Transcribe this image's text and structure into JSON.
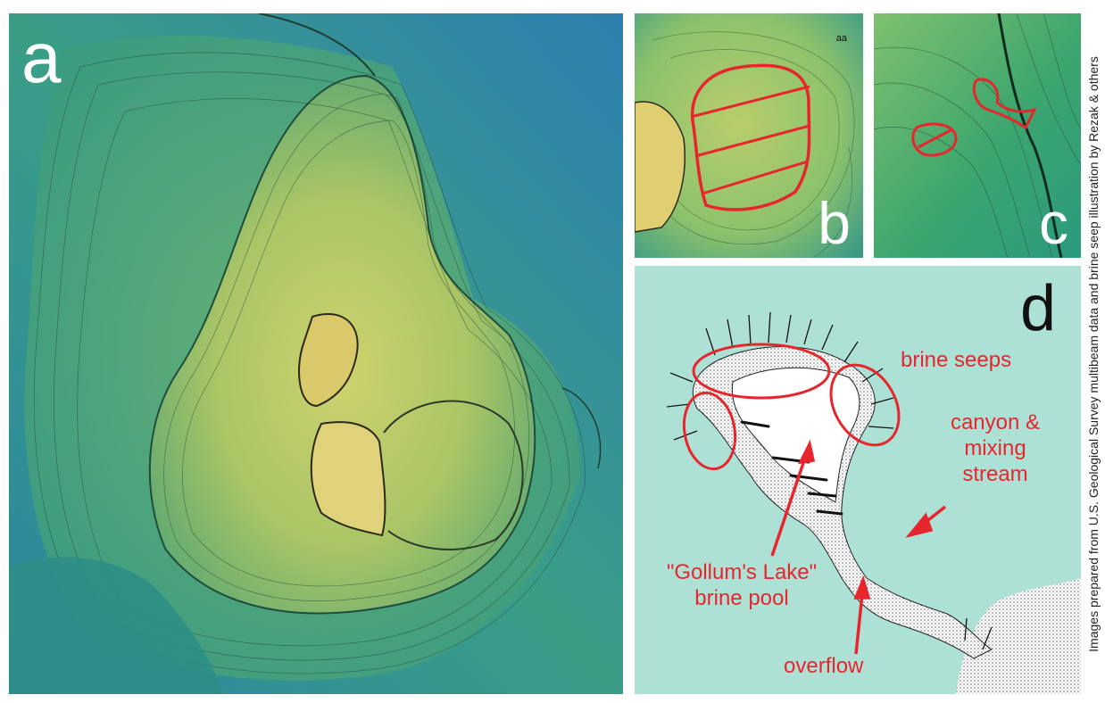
{
  "panels": {
    "a": {
      "letter": "a"
    },
    "b": {
      "letter": "b",
      "mark": "aa"
    },
    "c": {
      "letter": "c"
    },
    "d": {
      "letter": "d",
      "labels": {
        "brine_seeps": "brine seeps",
        "canyon_line1": "canyon &",
        "canyon_line2": "mixing",
        "canyon_line3": "stream",
        "gollum_line1": "\"Gollum's Lake\"",
        "gollum_line2": "brine pool",
        "overflow": "overflow"
      }
    }
  },
  "credit": "Images prepared from U.S. Geological Survey multibeam data and brine seep illustration by Rezak & others",
  "colors": {
    "annotation_red": "#e6262c",
    "seafloor_deep": "#2f84a8",
    "seafloor_mid": "#3aa27a",
    "seafloor_shallow": "#c8d36a",
    "illustration_water": "#aee1d6"
  }
}
